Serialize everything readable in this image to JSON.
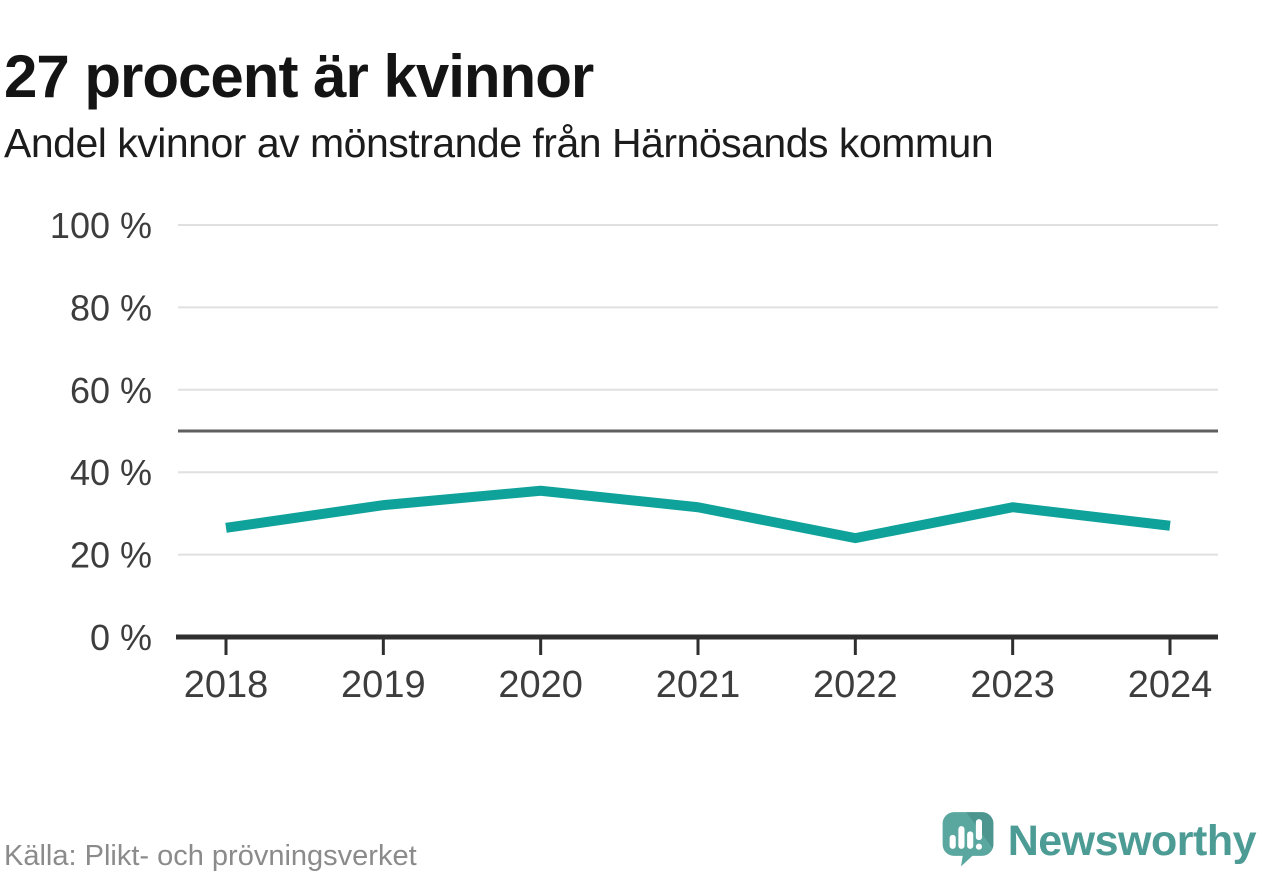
{
  "header": {
    "title": "27 procent är kvinnor",
    "subtitle": "Andel kvinnor av mönstrande från Härnösands kommun"
  },
  "chart_data": {
    "type": "line",
    "title": "27 procent är kvinnor",
    "subtitle": "Andel kvinnor av mönstrande från Härnösands kommun",
    "x": [
      "2018",
      "2019",
      "2020",
      "2021",
      "2022",
      "2023",
      "2024"
    ],
    "series": [
      {
        "name": "Andel kvinnor av mönstrande",
        "values": [
          26.5,
          32,
          35.5,
          31.5,
          24,
          31.5,
          27
        ]
      }
    ],
    "unit": "%",
    "ylim": [
      0,
      100
    ],
    "yticks": [
      0,
      20,
      40,
      60,
      80,
      100
    ],
    "ytick_labels": [
      "0 %",
      "20 %",
      "40 %",
      "60 %",
      "80 %",
      "100 %"
    ],
    "reference_line": {
      "value": 50
    },
    "grid": true,
    "legend": "none",
    "colors": {
      "line": "#0fa29a",
      "grid": "#e0e0e0",
      "reference": "#5f5f5f",
      "axis": "#2f2f2f",
      "axis_text": "#3d3d3d"
    }
  },
  "footer": {
    "source": "Källa: Plikt- och prövningsverket",
    "brand": "Newsworthy",
    "brand_colors": {
      "bubble": "#5aa7a0",
      "bubble_shade": "#4c968f",
      "wordmark": "#4c9b95"
    }
  }
}
